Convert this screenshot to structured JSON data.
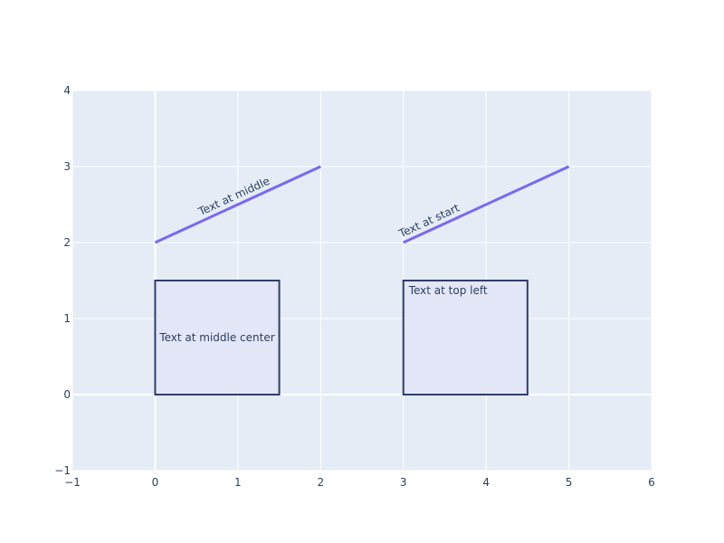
{
  "chart_data": {
    "type": "shapes",
    "xlim": [
      -1,
      6
    ],
    "ylim": [
      -1,
      4
    ],
    "xticks": [
      -1,
      0,
      1,
      2,
      3,
      4,
      5,
      6
    ],
    "yticks": [
      -1,
      0,
      1,
      2,
      3,
      4
    ],
    "grid": true,
    "colors": {
      "plot_background": "#e5ecf6",
      "grid": "#ffffff",
      "line": "#7b68ee",
      "rect_border": "#2f3e6b",
      "rect_fill": "#e3e6f7",
      "text": "#2a3f5f"
    },
    "lines": [
      {
        "x0": 0,
        "y0": 2,
        "x1": 2,
        "y1": 3,
        "label": "Text at middle",
        "label_position": "middle"
      },
      {
        "x0": 3,
        "y0": 2,
        "x1": 5,
        "y1": 3,
        "label": "Text at start",
        "label_position": "start"
      }
    ],
    "rects": [
      {
        "x0": 0,
        "y0": 0,
        "x1": 1.5,
        "y1": 1.5,
        "label": "Text at middle center",
        "label_position": "middle center"
      },
      {
        "x0": 3,
        "y0": 0,
        "x1": 4.5,
        "y1": 1.5,
        "label": "Text at top left",
        "label_position": "top left"
      }
    ]
  }
}
